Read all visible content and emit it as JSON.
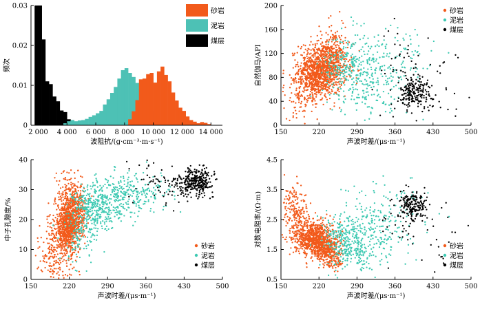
{
  "chart_data": [
    {
      "id": "p1",
      "type": "bar",
      "xlabel": "波阻抗/(g·cm⁻³·m·s⁻¹)",
      "ylabel": "频次",
      "xlim": [
        1500,
        14800
      ],
      "ylim": [
        0,
        0.03
      ],
      "xticks": [
        2000,
        4000,
        6000,
        8000,
        10000,
        12000,
        14000
      ],
      "xtick_labels": [
        "2 000",
        "4 000",
        "6 000",
        "8 000",
        "10 000",
        "12 000",
        "14 000"
      ],
      "yticks": [
        0,
        0.01,
        0.02,
        0.03
      ],
      "ytick_labels": [
        "0",
        "0.01",
        "0.02",
        "0.03"
      ],
      "bin_width": 250,
      "legend_position": "top-right",
      "series": [
        {
          "name": "煤层",
          "color": "#000000",
          "bins": [
            [
              1750,
              0.03
            ],
            [
              2000,
              0.03
            ],
            [
              2250,
              0.0215
            ],
            [
              2500,
              0.011
            ],
            [
              2750,
              0.0103
            ],
            [
              3000,
              0.0072
            ],
            [
              3250,
              0.006
            ],
            [
              3500,
              0.0037
            ],
            [
              3750,
              0.0033
            ],
            [
              4000,
              0.0015
            ],
            [
              4250,
              0.0008
            ]
          ]
        },
        {
          "name": "泥岩",
          "color": "#4dc1b5",
          "bins": [
            [
              3750,
              0.0005
            ],
            [
              4000,
              0.001
            ],
            [
              4250,
              0.0013
            ],
            [
              4500,
              0.001
            ],
            [
              4750,
              0.0012
            ],
            [
              5000,
              0.0013
            ],
            [
              5250,
              0.0016
            ],
            [
              5500,
              0.0021
            ],
            [
              5750,
              0.0025
            ],
            [
              6000,
              0.003
            ],
            [
              6250,
              0.0036
            ],
            [
              6500,
              0.0052
            ],
            [
              6750,
              0.0065
            ],
            [
              7000,
              0.0081
            ],
            [
              7250,
              0.0096
            ],
            [
              7500,
              0.0117
            ],
            [
              7750,
              0.0138
            ],
            [
              8000,
              0.0143
            ],
            [
              8250,
              0.0131
            ],
            [
              8500,
              0.0121
            ],
            [
              8750,
              0.0106
            ],
            [
              9000,
              0.0085
            ],
            [
              9250,
              0.0066
            ],
            [
              9500,
              0.005
            ],
            [
              9750,
              0.0036
            ],
            [
              10000,
              0.0022
            ],
            [
              10250,
              0.0013
            ],
            [
              10500,
              0.0008
            ]
          ]
        },
        {
          "name": "砂岩",
          "color": "#f25a1b",
          "bins": [
            [
              8250,
              0.0015
            ],
            [
              8500,
              0.0035
            ],
            [
              8750,
              0.0063
            ],
            [
              9000,
              0.0115
            ],
            [
              9250,
              0.0117
            ],
            [
              9500,
              0.0128
            ],
            [
              9750,
              0.0131
            ],
            [
              10000,
              0.0107
            ],
            [
              10250,
              0.0135
            ],
            [
              10500,
              0.0147
            ],
            [
              10750,
              0.0126
            ],
            [
              11000,
              0.011
            ],
            [
              11250,
              0.0082
            ],
            [
              11500,
              0.0062
            ],
            [
              11750,
              0.0044
            ],
            [
              12000,
              0.0036
            ],
            [
              12250,
              0.0022
            ],
            [
              12500,
              0.0013
            ],
            [
              12750,
              0.0009
            ],
            [
              13000,
              0.0005
            ],
            [
              13250,
              0.0008
            ],
            [
              13500,
              0.0006
            ],
            [
              13750,
              0.0003
            ]
          ]
        }
      ]
    },
    {
      "id": "p2",
      "type": "scatter",
      "xlabel": "声波时差/(μs·m⁻¹)",
      "ylabel": "自然伽马/API",
      "xlim": [
        150,
        500
      ],
      "ylim": [
        0,
        200
      ],
      "xticks": [
        150,
        220,
        290,
        360,
        430,
        500
      ],
      "yticks": [
        0,
        40,
        80,
        120,
        160,
        200
      ],
      "legend_position": "top-right",
      "series": [
        {
          "name": "砂岩",
          "color": "#f25a1b",
          "clusters": [
            [
              228,
              95,
              22,
              22,
              900
            ],
            [
              210,
              80,
              14,
              16,
              250
            ],
            [
              245,
              125,
              12,
              25,
              150
            ],
            [
              195,
              45,
              20,
              14,
              80
            ],
            [
              172,
              55,
              14,
              20,
              30
            ]
          ]
        },
        {
          "name": "泥岩",
          "color": "#3dc9b2",
          "clusters": [
            [
              270,
              100,
              22,
              28,
              200
            ],
            [
              330,
              95,
              35,
              30,
              130
            ],
            [
              300,
              60,
              30,
              22,
              90
            ],
            [
              360,
              110,
              40,
              38,
              70
            ]
          ]
        },
        {
          "name": "煤层",
          "color": "#000000",
          "clusters": [
            [
              390,
              55,
              10,
              12,
              140
            ],
            [
              410,
              50,
              16,
              16,
              60
            ],
            [
              370,
              95,
              25,
              35,
              40
            ],
            [
              440,
              80,
              30,
              30,
              25
            ]
          ]
        }
      ]
    },
    {
      "id": "p3",
      "type": "scatter",
      "xlabel": "声波时差/(μs·m⁻¹)",
      "ylabel": "中子孔隙度/%",
      "xlim": [
        150,
        500
      ],
      "ylim": [
        0,
        40
      ],
      "xticks": [
        150,
        220,
        290,
        360,
        430,
        500
      ],
      "yticks": [
        0,
        10,
        20,
        30,
        40
      ],
      "legend_position": "bottom-right",
      "series": [
        {
          "name": "砂岩",
          "color": "#f25a1b",
          "clusters": [
            [
              218,
              18,
              12,
              4.5,
              800
            ],
            [
              232,
              23,
              10,
              4.5,
              300
            ],
            [
              200,
              12,
              15,
              5,
              150
            ],
            [
              188,
              6,
              14,
              4,
              80
            ],
            [
              215,
              30,
              10,
              4,
              60
            ]
          ]
        },
        {
          "name": "泥岩",
          "color": "#3dc9b2",
          "clusters": [
            [
              270,
              24,
              22,
              4,
              300
            ],
            [
              320,
              28,
              28,
              3.5,
              220
            ],
            [
              250,
              17,
              18,
              5,
              120
            ],
            [
              365,
              30,
              25,
              3,
              60
            ],
            [
              230,
              9,
              12,
              3,
              20
            ]
          ]
        },
        {
          "name": "煤层",
          "color": "#000000",
          "clusters": [
            [
              455,
              33,
              14,
              2,
              260
            ],
            [
              420,
              31,
              22,
              3,
              80
            ],
            [
              380,
              35,
              25,
              4,
              40
            ]
          ]
        }
      ]
    },
    {
      "id": "p4",
      "type": "scatter",
      "xlabel": "声波时差/(μs·m⁻¹)",
      "ylabel": "对数电阻率/(Ω·m)",
      "xlim": [
        150,
        500
      ],
      "ylim": [
        0.5,
        4.5
      ],
      "xticks": [
        150,
        220,
        290,
        360,
        430,
        500
      ],
      "yticks": [
        0.5,
        1.5,
        2.5,
        3.5,
        4.5
      ],
      "legend_position": "bottom-right",
      "series": [
        {
          "name": "砂岩",
          "color": "#f25a1b",
          "clusters": [
            [
              210,
              1.9,
              18,
              0.28,
              800
            ],
            [
              235,
              1.45,
              14,
              0.2,
              250
            ],
            [
              180,
              2.6,
              12,
              0.4,
              140
            ],
            [
              168,
              3.1,
              8,
              0.35,
              50
            ],
            [
              250,
              1.1,
              8,
              0.15,
              60
            ]
          ]
        },
        {
          "name": "泥岩",
          "color": "#3dc9b2",
          "clusters": [
            [
              270,
              1.8,
              22,
              0.45,
              250
            ],
            [
              320,
              2.1,
              30,
              0.45,
              150
            ],
            [
              350,
              2.8,
              35,
              0.6,
              90
            ],
            [
              290,
              1.3,
              20,
              0.3,
              80
            ]
          ]
        },
        {
          "name": "煤层",
          "color": "#000000",
          "clusters": [
            [
              395,
              2.95,
              12,
              0.22,
              170
            ],
            [
              380,
              2.6,
              25,
              0.4,
              40
            ],
            [
              420,
              1.8,
              40,
              0.6,
              30
            ]
          ]
        }
      ]
    }
  ]
}
